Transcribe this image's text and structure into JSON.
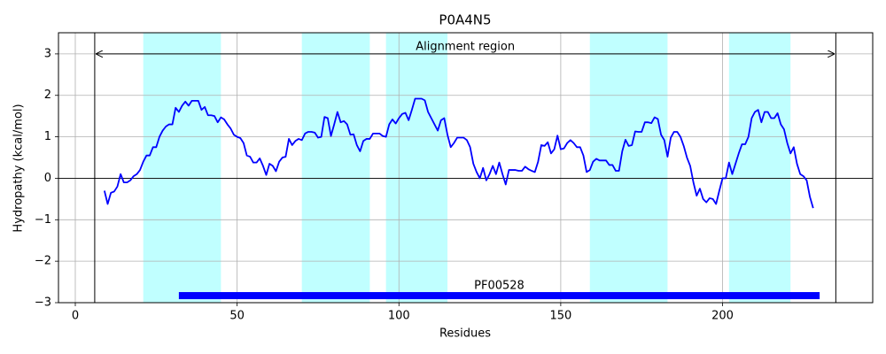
{
  "chart_data": {
    "type": "line",
    "title": "P0A4N5",
    "x_label": "Residues",
    "y_label": "Hydropathy (kcal/mol)",
    "color": "#0000ff",
    "grid": true,
    "xlim": [
      -5.2,
      246.4
    ],
    "ylim": [
      -3,
      3.51
    ],
    "xticks": [
      0,
      50,
      100,
      150,
      200
    ],
    "yticks": [
      {
        "value": -3,
        "label": "−3"
      },
      {
        "value": -2,
        "label": "−2"
      },
      {
        "value": -1,
        "label": "−1"
      },
      0,
      1,
      2,
      3
    ],
    "hline": 0,
    "regions": [
      {
        "start": 21,
        "end": 45
      },
      {
        "start": 70,
        "end": 91
      },
      {
        "start": 96,
        "end": 115
      },
      {
        "start": 159,
        "end": 183
      },
      {
        "start": 202,
        "end": 221
      }
    ],
    "region_color": "#c0ffff",
    "alignment_region": {
      "label": "Alignment region",
      "start": 6,
      "end": 235,
      "y": 3
    },
    "domain": {
      "label": "PF00528",
      "start": 32,
      "end": 230,
      "y": -2.83,
      "color": "#0000ff"
    },
    "x": [
      9,
      10,
      11,
      12,
      13,
      14,
      15,
      16,
      17,
      18,
      19,
      20,
      21,
      22,
      23,
      24,
      25,
      26,
      27,
      28,
      29,
      30,
      31,
      32,
      33,
      34,
      35,
      36,
      37,
      38,
      39,
      40,
      41,
      42,
      43,
      44,
      45,
      46,
      47,
      48,
      49,
      50,
      51,
      52,
      53,
      54,
      55,
      56,
      57,
      58,
      59,
      60,
      61,
      62,
      63,
      64,
      65,
      66,
      67,
      68,
      69,
      70,
      71,
      72,
      73,
      74,
      75,
      76,
      77,
      78,
      79,
      80,
      81,
      82,
      83,
      84,
      85,
      86,
      87,
      88,
      89,
      90,
      91,
      92,
      93,
      94,
      95,
      96,
      97,
      98,
      99,
      100,
      101,
      102,
      103,
      104,
      105,
      106,
      107,
      108,
      109,
      110,
      111,
      112,
      113,
      114,
      115,
      116,
      117,
      118,
      119,
      120,
      121,
      122,
      123,
      124,
      125,
      126,
      127,
      128,
      129,
      130,
      131,
      132,
      133,
      134,
      135,
      136,
      137,
      138,
      139,
      140,
      141,
      142,
      143,
      144,
      145,
      146,
      147,
      148,
      149,
      150,
      151,
      152,
      153,
      154,
      155,
      156,
      157,
      158,
      159,
      160,
      161,
      162,
      163,
      164,
      165,
      166,
      167,
      168,
      169,
      170,
      171,
      172,
      173,
      174,
      175,
      176,
      177,
      178,
      179,
      180,
      181,
      182,
      183,
      184,
      185,
      186,
      187,
      188,
      189,
      190,
      191,
      192,
      193,
      194,
      195,
      196,
      197,
      198,
      199,
      200,
      201,
      202,
      203,
      204,
      205,
      206,
      207,
      208,
      209,
      210,
      211,
      212,
      213,
      214,
      215,
      216,
      217,
      218,
      219,
      220,
      221,
      222,
      223,
      224,
      225,
      226,
      227,
      228
    ],
    "values": [
      -0.3,
      -0.62,
      -0.35,
      -0.32,
      -0.2,
      0.1,
      -0.1,
      -0.1,
      -0.05,
      0.05,
      0.1,
      0.2,
      0.4,
      0.55,
      0.55,
      0.75,
      0.75,
      1.0,
      1.15,
      1.25,
      1.3,
      1.3,
      1.7,
      1.6,
      1.75,
      1.85,
      1.75,
      1.87,
      1.87,
      1.87,
      1.65,
      1.72,
      1.52,
      1.52,
      1.5,
      1.35,
      1.47,
      1.42,
      1.3,
      1.2,
      1.05,
      1.0,
      0.97,
      0.85,
      0.55,
      0.52,
      0.38,
      0.38,
      0.48,
      0.3,
      0.08,
      0.35,
      0.3,
      0.17,
      0.4,
      0.5,
      0.52,
      0.95,
      0.8,
      0.9,
      0.95,
      0.92,
      1.08,
      1.12,
      1.12,
      1.1,
      0.98,
      1.0,
      1.48,
      1.45,
      1.02,
      1.3,
      1.6,
      1.35,
      1.38,
      1.3,
      1.05,
      1.06,
      0.8,
      0.65,
      0.9,
      0.95,
      0.95,
      1.08,
      1.08,
      1.08,
      1.02,
      1.0,
      1.3,
      1.42,
      1.32,
      1.45,
      1.55,
      1.58,
      1.4,
      1.65,
      1.92,
      1.92,
      1.92,
      1.88,
      1.6,
      1.45,
      1.3,
      1.15,
      1.4,
      1.45,
      1.05,
      0.75,
      0.85,
      0.98,
      0.98,
      0.98,
      0.92,
      0.75,
      0.35,
      0.15,
      0.0,
      0.25,
      -0.05,
      0.1,
      0.3,
      0.1,
      0.38,
      0.1,
      -0.15,
      0.2,
      0.2,
      0.2,
      0.18,
      0.18,
      0.28,
      0.22,
      0.18,
      0.15,
      0.4,
      0.8,
      0.78,
      0.87,
      0.6,
      0.7,
      1.03,
      0.7,
      0.72,
      0.85,
      0.92,
      0.85,
      0.75,
      0.75,
      0.55,
      0.15,
      0.2,
      0.4,
      0.47,
      0.43,
      0.43,
      0.43,
      0.32,
      0.32,
      0.18,
      0.18,
      0.65,
      0.93,
      0.78,
      0.8,
      1.13,
      1.12,
      1.12,
      1.35,
      1.35,
      1.33,
      1.47,
      1.43,
      1.05,
      0.92,
      0.52,
      0.98,
      1.12,
      1.12,
      1.0,
      0.78,
      0.5,
      0.3,
      -0.1,
      -0.42,
      -0.25,
      -0.5,
      -0.58,
      -0.48,
      -0.5,
      -0.62,
      -0.3,
      0.0,
      0.0,
      0.38,
      0.1,
      0.35,
      0.6,
      0.82,
      0.82,
      1.0,
      1.45,
      1.6,
      1.65,
      1.35,
      1.6,
      1.6,
      1.45,
      1.45,
      1.57,
      1.3,
      1.18,
      0.85,
      0.6,
      0.75,
      0.35,
      0.1,
      0.05,
      -0.05,
      -0.45,
      -0.72
    ]
  }
}
